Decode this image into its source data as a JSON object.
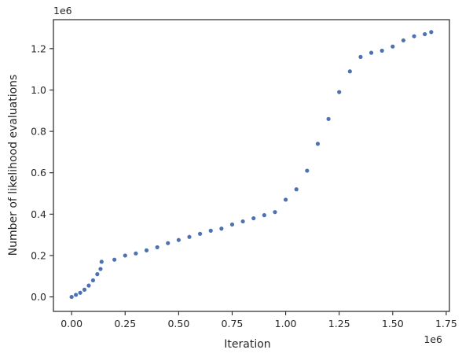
{
  "chart_data": {
    "type": "scatter",
    "title": "",
    "xlabel": "Iteration",
    "ylabel": "Number of likelihood evaluations",
    "x_offset_text": "1e6",
    "y_offset_text": "1e6",
    "xlim": [
      -0.085,
      1.765
    ],
    "ylim": [
      -0.07,
      1.34
    ],
    "x_ticks": [
      0.0,
      0.25,
      0.5,
      0.75,
      1.0,
      1.25,
      1.5,
      1.75
    ],
    "x_tick_labels": [
      "0.00",
      "0.25",
      "0.50",
      "0.75",
      "1.00",
      "1.25",
      "1.50",
      "1.75"
    ],
    "y_ticks": [
      0.0,
      0.2,
      0.4,
      0.6,
      0.8,
      1.0,
      1.2
    ],
    "y_tick_labels": [
      "0.0",
      "0.2",
      "0.4",
      "0.6",
      "0.8",
      "1.0",
      "1.2"
    ],
    "grid": false,
    "marker_color": "#4c72b0",
    "series": [
      {
        "x": [
          0.0,
          0.02,
          0.04,
          0.06,
          0.08,
          0.1,
          0.12,
          0.135,
          0.14,
          0.2,
          0.25,
          0.3,
          0.35,
          0.4,
          0.45,
          0.5,
          0.55,
          0.6,
          0.65,
          0.7,
          0.75,
          0.8,
          0.85,
          0.9,
          0.95,
          1.0,
          1.05,
          1.1,
          1.15,
          1.2,
          1.25,
          1.3,
          1.35,
          1.4,
          1.45,
          1.5,
          1.55,
          1.6,
          1.65,
          1.68
        ],
        "y": [
          0.0,
          0.01,
          0.02,
          0.035,
          0.055,
          0.08,
          0.11,
          0.135,
          0.17,
          0.18,
          0.2,
          0.21,
          0.225,
          0.24,
          0.26,
          0.275,
          0.29,
          0.305,
          0.32,
          0.33,
          0.35,
          0.365,
          0.38,
          0.395,
          0.41,
          0.47,
          0.52,
          0.61,
          0.74,
          0.86,
          0.99,
          1.09,
          1.16,
          1.18,
          1.19,
          1.21,
          1.24,
          1.26,
          1.27,
          1.28
        ]
      }
    ]
  }
}
